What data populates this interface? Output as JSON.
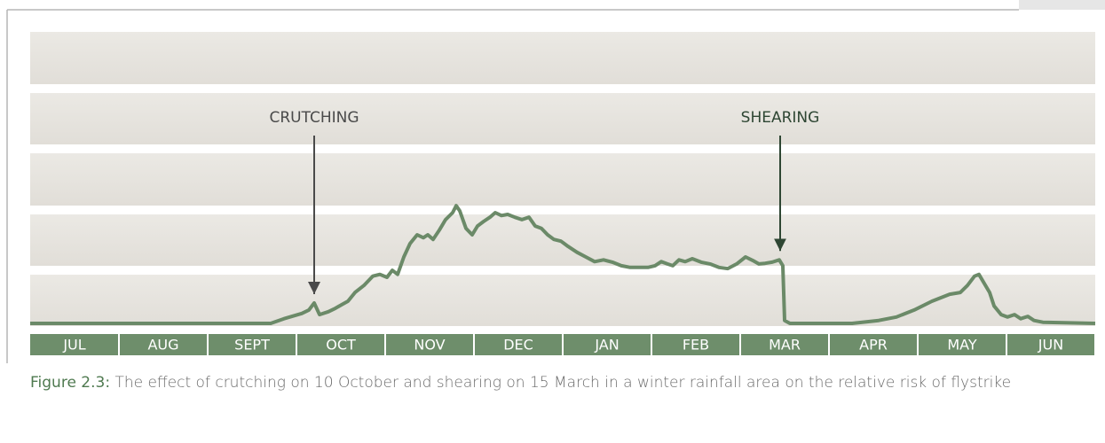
{
  "chart_data": {
    "type": "line",
    "categories": [
      "JUL",
      "AUG",
      "SEPT",
      "OCT",
      "NOV",
      "DEC",
      "JAN",
      "FEB",
      "MAR",
      "APR",
      "MAY",
      "JUN"
    ],
    "xlim": [
      0,
      12
    ],
    "ylim": [
      0,
      5
    ],
    "color": "#6b8a68",
    "annotations": [
      {
        "text": "CRUTCHING",
        "x": 3.2
      },
      {
        "text": "SHEARING",
        "x": 8.45
      }
    ],
    "x": [
      0,
      2.71,
      2.86,
      3.06,
      3.14,
      3.2,
      3.26,
      3.36,
      3.44,
      3.51,
      3.58,
      3.66,
      3.76,
      3.86,
      3.94,
      4.02,
      4.08,
      4.14,
      4.21,
      4.28,
      4.36,
      4.43,
      4.48,
      4.54,
      4.61,
      4.68,
      4.76,
      4.8,
      4.84,
      4.91,
      4.98,
      5.04,
      5.11,
      5.18,
      5.24,
      5.31,
      5.38,
      5.46,
      5.54,
      5.62,
      5.69,
      5.76,
      5.83,
      5.9,
      5.98,
      6.06,
      6.16,
      6.26,
      6.36,
      6.46,
      6.56,
      6.66,
      6.76,
      6.86,
      6.96,
      7.04,
      7.11,
      7.18,
      7.24,
      7.31,
      7.38,
      7.46,
      7.56,
      7.66,
      7.76,
      7.86,
      7.96,
      8.06,
      8.14,
      8.21,
      8.28,
      8.36,
      8.44,
      8.48,
      8.5,
      8.56,
      9.26,
      9.56,
      9.76,
      9.96,
      10.16,
      10.36,
      10.48,
      10.56,
      10.64,
      10.69,
      10.74,
      10.81,
      10.86,
      10.94,
      11.01,
      11.09,
      11.16,
      11.24,
      11.31,
      11.41,
      12
    ],
    "values": [
      0,
      0,
      0.08,
      0.17,
      0.23,
      0.35,
      0.15,
      0.2,
      0.26,
      0.32,
      0.38,
      0.53,
      0.65,
      0.81,
      0.84,
      0.79,
      0.91,
      0.84,
      1.14,
      1.37,
      1.52,
      1.47,
      1.52,
      1.44,
      1.6,
      1.78,
      1.9,
      2.02,
      1.93,
      1.63,
      1.52,
      1.67,
      1.75,
      1.82,
      1.9,
      1.85,
      1.87,
      1.82,
      1.78,
      1.82,
      1.67,
      1.63,
      1.52,
      1.44,
      1.41,
      1.32,
      1.22,
      1.14,
      1.06,
      1.09,
      1.05,
      0.99,
      0.96,
      0.96,
      0.96,
      0.99,
      1.06,
      1.02,
      0.99,
      1.09,
      1.06,
      1.11,
      1.05,
      1.02,
      0.96,
      0.94,
      1.02,
      1.14,
      1.08,
      1.02,
      1.03,
      1.05,
      1.09,
      0.99,
      0.05,
      0,
      0,
      0.05,
      0.11,
      0.23,
      0.38,
      0.5,
      0.53,
      0.65,
      0.81,
      0.84,
      0.71,
      0.53,
      0.3,
      0.15,
      0.11,
      0.15,
      0.08,
      0.12,
      0.05,
      0.02,
      0
    ],
    "caption": {
      "label": "Figure 2.3:",
      "text": "The effect of crutching on 10 October and shearing on 15 March in a winter rainfall area on the relative risk of flystrike"
    }
  }
}
